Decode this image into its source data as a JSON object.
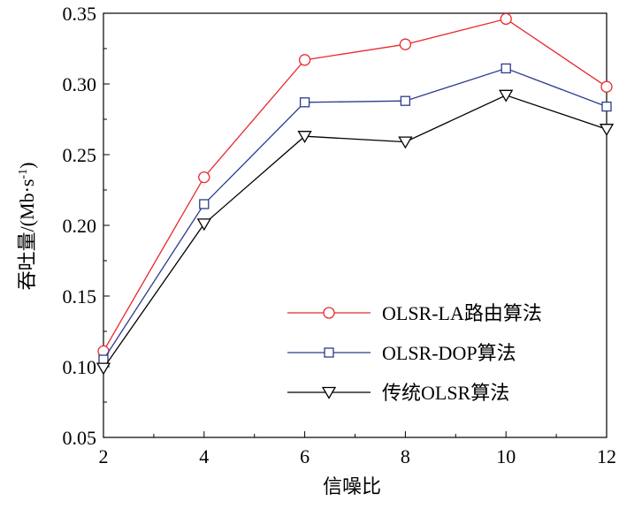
{
  "chart_data": {
    "type": "line",
    "title": "",
    "xlabel": "信噪比",
    "ylabel_main": "吞吐量/(Mb·s",
    "ylabel_sup": "-1",
    "ylabel_end": ")",
    "x": [
      2,
      4,
      6,
      8,
      10,
      12
    ],
    "x_tick_labels": [
      "2",
      "4",
      "6",
      "8",
      "10",
      "12"
    ],
    "xlim": [
      2,
      12
    ],
    "ylim": [
      0.05,
      0.35
    ],
    "y_ticks": [
      0.05,
      0.1,
      0.15,
      0.2,
      0.25,
      0.3,
      0.35
    ],
    "y_tick_labels": [
      "0.05",
      "0.10",
      "0.15",
      "0.20",
      "0.25",
      "0.30",
      "0.35"
    ],
    "legend_position": "center-right",
    "series": [
      {
        "name": "OLSR-LA路由算法",
        "color": "#e8292e",
        "marker": "circle",
        "values": [
          0.111,
          0.234,
          0.317,
          0.328,
          0.346,
          0.298
        ]
      },
      {
        "name": "OLSR-DOP算法",
        "color": "#2b3a8f",
        "marker": "square",
        "values": [
          0.105,
          0.215,
          0.287,
          0.288,
          0.311,
          0.284
        ]
      },
      {
        "name": "传统OLSR算法",
        "color": "#000000",
        "marker": "triangle-down",
        "values": [
          0.099,
          0.201,
          0.263,
          0.259,
          0.292,
          0.268
        ]
      }
    ]
  }
}
